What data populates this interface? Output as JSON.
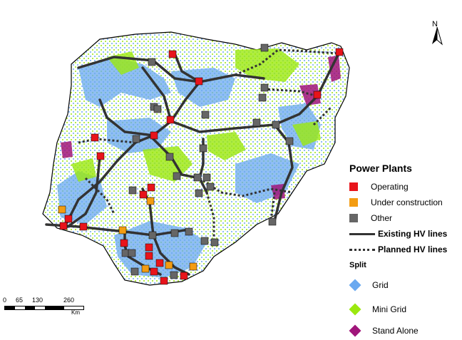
{
  "map": {
    "north_label": "N",
    "legend": {
      "title": "Power Plants",
      "items": [
        {
          "label": "Operating",
          "color": "#e8141b"
        },
        {
          "label": "Under construction",
          "color": "#f39c12"
        },
        {
          "label": "Other",
          "color": "#666666"
        }
      ],
      "lines": [
        {
          "label": "Existing HV lines",
          "style": "solid"
        },
        {
          "label": "Planned HV lines",
          "style": "dotted"
        }
      ],
      "split_title": "Split",
      "split_items": [
        {
          "label": "Grid",
          "color": "#6aa9f0"
        },
        {
          "label": "Mini Grid",
          "color": "#9be80f"
        },
        {
          "label": "Stand Alone",
          "color": "#a0157a"
        }
      ]
    },
    "scalebar": {
      "ticks": [
        "0",
        "65",
        "130",
        "260"
      ],
      "unit": "Km"
    }
  }
}
